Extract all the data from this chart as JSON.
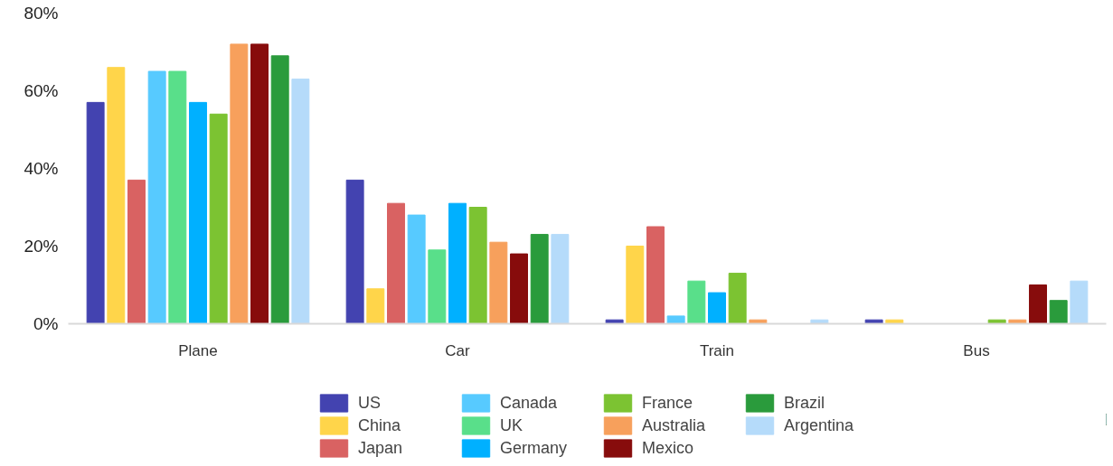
{
  "chart_data": {
    "type": "bar",
    "categories": [
      "Plane",
      "Car",
      "Train",
      "Bus"
    ],
    "series": [
      {
        "name": "US",
        "color": "#4343b0",
        "values": [
          57,
          37,
          1,
          1
        ]
      },
      {
        "name": "China",
        "color": "#ffd54a",
        "values": [
          66,
          9,
          20,
          1
        ]
      },
      {
        "name": "Japan",
        "color": "#d96262",
        "values": [
          37,
          31,
          25,
          0
        ]
      },
      {
        "name": "Canada",
        "color": "#57caff",
        "values": [
          65,
          28,
          2,
          0
        ]
      },
      {
        "name": "UK",
        "color": "#59df8a",
        "values": [
          65,
          19,
          11,
          0
        ]
      },
      {
        "name": "Germany",
        "color": "#00b0ff",
        "values": [
          57,
          31,
          8,
          0
        ]
      },
      {
        "name": "France",
        "color": "#7cc332",
        "values": [
          54,
          30,
          13,
          1
        ]
      },
      {
        "name": "Australia",
        "color": "#f7a05c",
        "values": [
          72,
          21,
          1,
          1
        ]
      },
      {
        "name": "Mexico",
        "color": "#870c0c",
        "values": [
          72,
          18,
          0,
          10
        ]
      },
      {
        "name": "Brazil",
        "color": "#2a9b3c",
        "values": [
          69,
          23,
          0,
          6
        ]
      },
      {
        "name": "Argentina",
        "color": "#b5dbfa",
        "values": [
          63,
          23,
          1,
          11
        ]
      }
    ],
    "ylim": [
      0,
      80
    ],
    "yticks": [
      {
        "value": 0,
        "label": "0%"
      },
      {
        "value": 20,
        "label": "20%"
      },
      {
        "value": 40,
        "label": "40%"
      },
      {
        "value": 60,
        "label": "60%"
      },
      {
        "value": 80,
        "label": "80%"
      }
    ],
    "legend": "bottom"
  }
}
